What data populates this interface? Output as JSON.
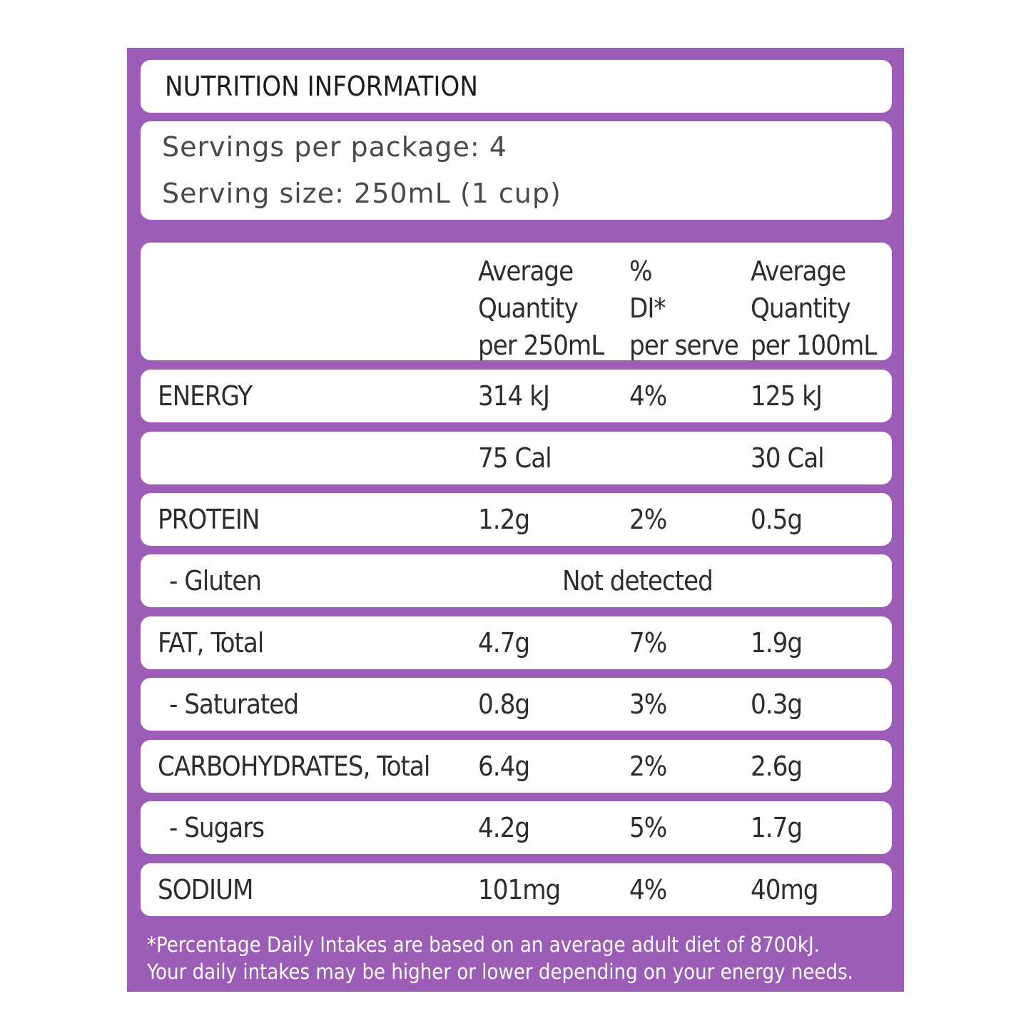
{
  "title": "NUTRITION INFORMATION",
  "servings": {
    "per_package": "Servings per package: 4",
    "serving_size": "Serving size: 250mL (1 cup)"
  },
  "header": {
    "col1": [
      "Average",
      "Quantity",
      "per 250mL"
    ],
    "col2": [
      "%",
      "DI*",
      "per serve"
    ],
    "col3": [
      "Average",
      "Quantity",
      "per 100mL"
    ]
  },
  "rows": [
    {
      "label": "ENERGY",
      "per_serve": "314 kJ",
      "di": "4%",
      "per_100": "125 kJ"
    },
    {
      "label": "",
      "per_serve": "75 Cal",
      "di": "",
      "per_100": "30 Cal"
    },
    {
      "label": "PROTEIN",
      "per_serve": "1.2g",
      "di": "2%",
      "per_100": "0.5g"
    },
    {
      "label": "- Gluten",
      "merged": "Not detected"
    },
    {
      "label": "FAT, Total",
      "per_serve": "4.7g",
      "di": "7%",
      "per_100": "1.9g"
    },
    {
      "label": "- Saturated",
      "per_serve": "0.8g",
      "di": "3%",
      "per_100": "0.3g"
    },
    {
      "label": "CARBOHYDRATES, Total",
      "per_serve": "6.4g",
      "di": "2%",
      "per_100": "2.6g"
    },
    {
      "label": "- Sugars",
      "per_serve": "4.2g",
      "di": "5%",
      "per_100": "1.7g"
    },
    {
      "label": "SODIUM",
      "per_serve": "101mg",
      "di": "4%",
      "per_100": "40mg"
    }
  ],
  "footnote": [
    "*Percentage Daily Intakes are based on an average adult diet of 8700kJ.",
    "Your daily intakes may be higher or lower depending on your energy needs."
  ],
  "colors": {
    "panel": "#9b5db5",
    "card": "#ffffff",
    "text": "#2d2d2d"
  }
}
